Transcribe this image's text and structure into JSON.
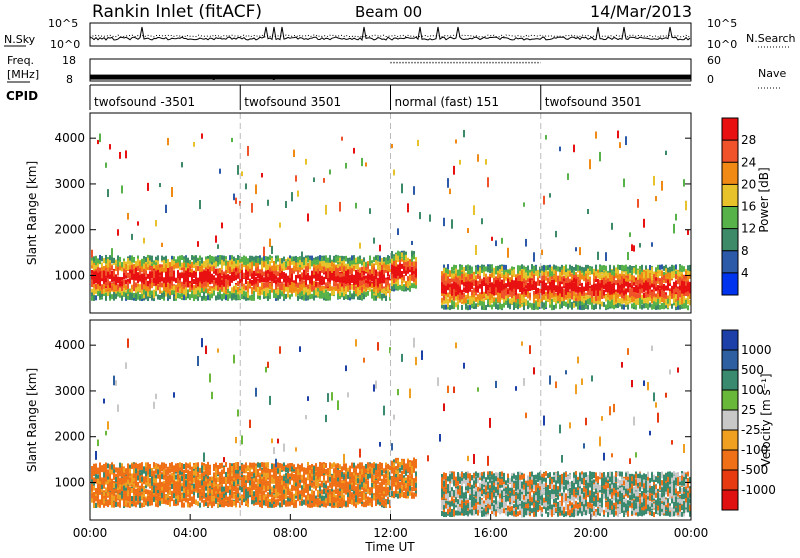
{
  "chart_data": [
    {
      "type": "line",
      "panel": "noise",
      "labels": {
        "left": "N.Sky",
        "right": "N.Search"
      },
      "left_ticks": [
        "10^5",
        "10^0"
      ],
      "right_ticks": [
        "10^5",
        "10^0"
      ],
      "series": [
        {
          "name": "N.Sky",
          "style": "solid"
        },
        {
          "name": "N.Search",
          "style": "dotted"
        }
      ]
    },
    {
      "type": "line",
      "panel": "frequency",
      "labels": {
        "left_top": "Freq.",
        "left_bottom": "[MHz]",
        "right": "Nave"
      },
      "left_ticks": [
        "18",
        "8"
      ],
      "right_ticks": [
        "60",
        "0"
      ],
      "freq_mhz_level": 10,
      "nave_segments": [
        {
          "start_h": 12.0,
          "end_h": 18.0,
          "value": 50
        }
      ]
    },
    {
      "type": "table",
      "panel": "cpid",
      "label": "CPID",
      "segments": [
        {
          "start_h": 0,
          "end_h": 6,
          "text": "twofsound -3501"
        },
        {
          "start_h": 6,
          "end_h": 12,
          "text": "twofsound 3501"
        },
        {
          "start_h": 12,
          "end_h": 18,
          "text": "normal (fast) 151"
        },
        {
          "start_h": 18,
          "end_h": 24,
          "text": "twofsound 3501"
        }
      ]
    },
    {
      "type": "heatmap",
      "panel": "power",
      "ylabel": "Slant Range [km]",
      "yticks": [
        1000,
        2000,
        3000,
        4000
      ],
      "ylim": [
        180,
        4550
      ],
      "colorbar": {
        "label": "Power [dB]",
        "ticks": [
          4,
          8,
          12,
          16,
          20,
          24,
          28
        ],
        "range": [
          0,
          32
        ],
        "colors": [
          "#0033ee",
          "#2c59a8",
          "#3d8a68",
          "#58b24a",
          "#e8c22a",
          "#f08a14",
          "#f0522a",
          "#e81010"
        ]
      },
      "scatter_band_km": [
        {
          "start_h": 0.0,
          "end_h": 12.0,
          "center": 1000,
          "halfwidth": 450
        },
        {
          "start_h": 12.0,
          "end_h": 13.0,
          "center": 1150,
          "halfwidth": 400
        },
        {
          "start_h": 14.0,
          "end_h": 24.0,
          "center": 800,
          "halfwidth": 450
        }
      ]
    },
    {
      "type": "heatmap",
      "panel": "velocity",
      "ylabel": "Slant Range [km]",
      "yticks": [
        1000,
        2000,
        3000,
        4000
      ],
      "ylim": [
        180,
        4550
      ],
      "xlabel": "Time UT",
      "xticks": [
        "00:00",
        "04:00",
        "08:00",
        "12:00",
        "16:00",
        "20:00",
        "00:00"
      ],
      "xlim_hours": [
        0,
        24
      ],
      "colorbar": {
        "label": "Velocity [m s⁻¹]",
        "ticks": [
          "1000",
          "500",
          "100",
          "25",
          "-25",
          "-100",
          "-500",
          "-1000"
        ],
        "colors": [
          "#1c3fa8",
          "#2e5fa0",
          "#3a8a70",
          "#6ab83a",
          "#c8c8c8",
          "#f0a020",
          "#f07018",
          "#e83a10",
          "#e01010"
        ]
      }
    }
  ],
  "title": {
    "station": "Rankin Inlet (fitACF)",
    "beam": "Beam 00",
    "date": "14/Mar/2013"
  }
}
